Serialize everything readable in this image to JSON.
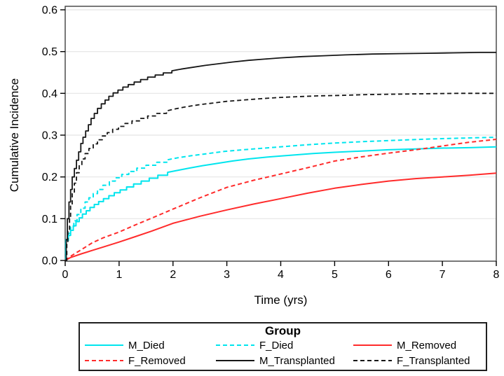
{
  "chart_data": {
    "type": "line",
    "title": "",
    "xlabel": "Time (yrs)",
    "ylabel": "Cumulative Incidence",
    "xlim": [
      0,
      8
    ],
    "ylim": [
      0,
      0.6
    ],
    "xticks": [
      0,
      1,
      2,
      3,
      4,
      5,
      6,
      7,
      8
    ],
    "xtick_labels": [
      "0",
      "1",
      "2",
      "3",
      "4",
      "5",
      "6",
      "7",
      "8"
    ],
    "yticks": [
      0.0,
      0.1,
      0.2,
      0.3,
      0.4,
      0.5,
      0.6
    ],
    "ytick_labels": [
      "0.0",
      "0.1",
      "0.2",
      "0.3",
      "0.4",
      "0.5",
      "0.6"
    ],
    "grid": "horizontal",
    "legend_title": "Group",
    "legend_position": "bottom",
    "colors": {
      "cyan": "#00e5ee",
      "red": "#ff2b2b",
      "black": "#161616",
      "gridline": "#e4e4e4",
      "frame": "#3f3f3f"
    },
    "series": [
      {
        "name": "M_Died",
        "color": "#00e5ee",
        "dash": "none",
        "width": 2,
        "points": [
          [
            0,
            0
          ],
          [
            0.01,
            0
          ],
          [
            0.01,
            0.048
          ],
          [
            0.06,
            0.048
          ],
          [
            0.06,
            0.06
          ],
          [
            0.1,
            0.06
          ],
          [
            0.1,
            0.072
          ],
          [
            0.15,
            0.072
          ],
          [
            0.15,
            0.083
          ],
          [
            0.2,
            0.083
          ],
          [
            0.2,
            0.093
          ],
          [
            0.26,
            0.093
          ],
          [
            0.26,
            0.102
          ],
          [
            0.32,
            0.102
          ],
          [
            0.32,
            0.111
          ],
          [
            0.39,
            0.111
          ],
          [
            0.39,
            0.119
          ],
          [
            0.46,
            0.119
          ],
          [
            0.46,
            0.127
          ],
          [
            0.54,
            0.127
          ],
          [
            0.54,
            0.134
          ],
          [
            0.62,
            0.134
          ],
          [
            0.62,
            0.141
          ],
          [
            0.71,
            0.141
          ],
          [
            0.71,
            0.148
          ],
          [
            0.81,
            0.148
          ],
          [
            0.81,
            0.155
          ],
          [
            0.91,
            0.155
          ],
          [
            0.91,
            0.162
          ],
          [
            1.02,
            0.162
          ],
          [
            1.02,
            0.169
          ],
          [
            1.14,
            0.169
          ],
          [
            1.14,
            0.176
          ],
          [
            1.27,
            0.176
          ],
          [
            1.27,
            0.183
          ],
          [
            1.41,
            0.183
          ],
          [
            1.41,
            0.19
          ],
          [
            1.56,
            0.19
          ],
          [
            1.56,
            0.197
          ],
          [
            1.72,
            0.197
          ],
          [
            1.72,
            0.204
          ],
          [
            1.9,
            0.204
          ],
          [
            1.9,
            0.211
          ],
          [
            2.1,
            0.216
          ],
          [
            2.3,
            0.221
          ],
          [
            2.55,
            0.227
          ],
          [
            2.8,
            0.232
          ],
          [
            3.1,
            0.238
          ],
          [
            3.4,
            0.243
          ],
          [
            3.8,
            0.248
          ],
          [
            4.2,
            0.252
          ],
          [
            4.6,
            0.256
          ],
          [
            5.0,
            0.259
          ],
          [
            5.5,
            0.262
          ],
          [
            6.0,
            0.265
          ],
          [
            6.5,
            0.267
          ],
          [
            7.0,
            0.269
          ],
          [
            7.5,
            0.27
          ],
          [
            8,
            0.272
          ]
        ]
      },
      {
        "name": "F_Died",
        "color": "#00e5ee",
        "dash": "6,4",
        "width": 2,
        "points": [
          [
            0,
            0
          ],
          [
            0.01,
            0
          ],
          [
            0.01,
            0.05
          ],
          [
            0.05,
            0.05
          ],
          [
            0.05,
            0.065
          ],
          [
            0.1,
            0.065
          ],
          [
            0.1,
            0.08
          ],
          [
            0.16,
            0.08
          ],
          [
            0.16,
            0.095
          ],
          [
            0.22,
            0.095
          ],
          [
            0.22,
            0.11
          ],
          [
            0.29,
            0.11
          ],
          [
            0.29,
            0.125
          ],
          [
            0.37,
            0.125
          ],
          [
            0.37,
            0.14
          ],
          [
            0.44,
            0.14
          ],
          [
            0.44,
            0.15
          ],
          [
            0.52,
            0.15
          ],
          [
            0.52,
            0.16
          ],
          [
            0.6,
            0.16
          ],
          [
            0.6,
            0.17
          ],
          [
            0.7,
            0.17
          ],
          [
            0.7,
            0.18
          ],
          [
            0.82,
            0.18
          ],
          [
            0.82,
            0.19
          ],
          [
            0.93,
            0.19
          ],
          [
            0.93,
            0.198
          ],
          [
            1.05,
            0.198
          ],
          [
            1.05,
            0.206
          ],
          [
            1.18,
            0.206
          ],
          [
            1.18,
            0.213
          ],
          [
            1.33,
            0.213
          ],
          [
            1.33,
            0.221
          ],
          [
            1.5,
            0.221
          ],
          [
            1.5,
            0.228
          ],
          [
            1.7,
            0.228
          ],
          [
            1.7,
            0.235
          ],
          [
            1.9,
            0.235
          ],
          [
            1.9,
            0.241
          ],
          [
            2.1,
            0.246
          ],
          [
            2.35,
            0.251
          ],
          [
            2.65,
            0.256
          ],
          [
            2.95,
            0.261
          ],
          [
            3.3,
            0.265
          ],
          [
            3.7,
            0.269
          ],
          [
            4.1,
            0.273
          ],
          [
            4.5,
            0.277
          ],
          [
            5.0,
            0.281
          ],
          [
            5.6,
            0.285
          ],
          [
            6.2,
            0.288
          ],
          [
            6.8,
            0.291
          ],
          [
            7.4,
            0.293
          ],
          [
            8,
            0.295
          ]
        ]
      },
      {
        "name": "M_Removed",
        "color": "#ff2b2b",
        "dash": "none",
        "width": 2,
        "points": [
          [
            0,
            0
          ],
          [
            0.1,
            0.007
          ],
          [
            0.3,
            0.016
          ],
          [
            0.5,
            0.024
          ],
          [
            0.7,
            0.032
          ],
          [
            1.0,
            0.044
          ],
          [
            1.3,
            0.057
          ],
          [
            1.6,
            0.07
          ],
          [
            2.0,
            0.089
          ],
          [
            2.5,
            0.106
          ],
          [
            3.0,
            0.121
          ],
          [
            3.5,
            0.135
          ],
          [
            4.0,
            0.148
          ],
          [
            4.5,
            0.161
          ],
          [
            5.0,
            0.173
          ],
          [
            5.5,
            0.182
          ],
          [
            6.0,
            0.19
          ],
          [
            6.5,
            0.196
          ],
          [
            7.0,
            0.2
          ],
          [
            7.5,
            0.204
          ],
          [
            8,
            0.209
          ]
        ]
      },
      {
        "name": "F_Removed",
        "color": "#ff2b2b",
        "dash": "6,4",
        "width": 2,
        "points": [
          [
            0,
            0
          ],
          [
            0.1,
            0.01
          ],
          [
            0.3,
            0.026
          ],
          [
            0.5,
            0.042
          ],
          [
            0.7,
            0.054
          ],
          [
            1.0,
            0.068
          ],
          [
            1.3,
            0.085
          ],
          [
            1.6,
            0.101
          ],
          [
            2.0,
            0.123
          ],
          [
            2.5,
            0.15
          ],
          [
            3.0,
            0.175
          ],
          [
            3.5,
            0.192
          ],
          [
            4.0,
            0.207
          ],
          [
            4.5,
            0.222
          ],
          [
            5.0,
            0.238
          ],
          [
            5.5,
            0.248
          ],
          [
            6.0,
            0.257
          ],
          [
            6.5,
            0.265
          ],
          [
            7.0,
            0.274
          ],
          [
            7.5,
            0.283
          ],
          [
            8,
            0.29
          ]
        ]
      },
      {
        "name": "M_Transplanted",
        "color": "#161616",
        "dash": "none",
        "width": 1.8,
        "points": [
          [
            0,
            0
          ],
          [
            0.02,
            0
          ],
          [
            0.02,
            0.05
          ],
          [
            0.04,
            0.05
          ],
          [
            0.04,
            0.1
          ],
          [
            0.07,
            0.1
          ],
          [
            0.07,
            0.14
          ],
          [
            0.1,
            0.14
          ],
          [
            0.1,
            0.17
          ],
          [
            0.13,
            0.17
          ],
          [
            0.13,
            0.2
          ],
          [
            0.17,
            0.2
          ],
          [
            0.17,
            0.22
          ],
          [
            0.21,
            0.22
          ],
          [
            0.21,
            0.24
          ],
          [
            0.25,
            0.24
          ],
          [
            0.25,
            0.26
          ],
          [
            0.29,
            0.26
          ],
          [
            0.29,
            0.28
          ],
          [
            0.33,
            0.28
          ],
          [
            0.33,
            0.295
          ],
          [
            0.38,
            0.295
          ],
          [
            0.38,
            0.31
          ],
          [
            0.43,
            0.31
          ],
          [
            0.43,
            0.325
          ],
          [
            0.48,
            0.325
          ],
          [
            0.48,
            0.34
          ],
          [
            0.54,
            0.34
          ],
          [
            0.54,
            0.352
          ],
          [
            0.6,
            0.352
          ],
          [
            0.6,
            0.364
          ],
          [
            0.67,
            0.364
          ],
          [
            0.67,
            0.375
          ],
          [
            0.74,
            0.375
          ],
          [
            0.74,
            0.384
          ],
          [
            0.81,
            0.384
          ],
          [
            0.81,
            0.393
          ],
          [
            0.89,
            0.393
          ],
          [
            0.89,
            0.401
          ],
          [
            0.98,
            0.401
          ],
          [
            0.98,
            0.408
          ],
          [
            1.07,
            0.408
          ],
          [
            1.07,
            0.415
          ],
          [
            1.17,
            0.415
          ],
          [
            1.17,
            0.421
          ],
          [
            1.28,
            0.421
          ],
          [
            1.28,
            0.427
          ],
          [
            1.4,
            0.427
          ],
          [
            1.4,
            0.433
          ],
          [
            1.53,
            0.433
          ],
          [
            1.53,
            0.439
          ],
          [
            1.67,
            0.439
          ],
          [
            1.67,
            0.444
          ],
          [
            1.82,
            0.444
          ],
          [
            1.82,
            0.449
          ],
          [
            1.98,
            0.449
          ],
          [
            1.98,
            0.454
          ],
          [
            2.15,
            0.458
          ],
          [
            2.35,
            0.462
          ],
          [
            2.6,
            0.467
          ],
          [
            2.85,
            0.471
          ],
          [
            3.1,
            0.475
          ],
          [
            3.4,
            0.479
          ],
          [
            3.7,
            0.482
          ],
          [
            4.0,
            0.485
          ],
          [
            4.4,
            0.488
          ],
          [
            4.8,
            0.49
          ],
          [
            5.2,
            0.492
          ],
          [
            5.7,
            0.494
          ],
          [
            6.2,
            0.495
          ],
          [
            6.7,
            0.496
          ],
          [
            7.2,
            0.497
          ],
          [
            7.7,
            0.498
          ],
          [
            8,
            0.498
          ]
        ]
      },
      {
        "name": "F_Transplanted",
        "color": "#161616",
        "dash": "6,4",
        "width": 1.8,
        "points": [
          [
            0,
            0
          ],
          [
            0.03,
            0
          ],
          [
            0.03,
            0.04
          ],
          [
            0.05,
            0.04
          ],
          [
            0.05,
            0.07
          ],
          [
            0.08,
            0.07
          ],
          [
            0.08,
            0.1
          ],
          [
            0.1,
            0.1
          ],
          [
            0.1,
            0.13
          ],
          [
            0.13,
            0.13
          ],
          [
            0.13,
            0.16
          ],
          [
            0.17,
            0.16
          ],
          [
            0.17,
            0.185
          ],
          [
            0.21,
            0.185
          ],
          [
            0.21,
            0.21
          ],
          [
            0.26,
            0.21
          ],
          [
            0.26,
            0.228
          ],
          [
            0.31,
            0.228
          ],
          [
            0.31,
            0.243
          ],
          [
            0.37,
            0.243
          ],
          [
            0.37,
            0.256
          ],
          [
            0.44,
            0.256
          ],
          [
            0.44,
            0.268
          ],
          [
            0.52,
            0.268
          ],
          [
            0.52,
            0.279
          ],
          [
            0.6,
            0.279
          ],
          [
            0.6,
            0.289
          ],
          [
            0.69,
            0.289
          ],
          [
            0.69,
            0.298
          ],
          [
            0.78,
            0.298
          ],
          [
            0.78,
            0.306
          ],
          [
            0.88,
            0.306
          ],
          [
            0.88,
            0.314
          ],
          [
            0.99,
            0.314
          ],
          [
            0.99,
            0.321
          ],
          [
            1.11,
            0.321
          ],
          [
            1.11,
            0.328
          ],
          [
            1.24,
            0.328
          ],
          [
            1.24,
            0.334
          ],
          [
            1.38,
            0.334
          ],
          [
            1.38,
            0.34
          ],
          [
            1.53,
            0.34
          ],
          [
            1.53,
            0.346
          ],
          [
            1.7,
            0.346
          ],
          [
            1.7,
            0.352
          ],
          [
            1.88,
            0.352
          ],
          [
            1.88,
            0.358
          ],
          [
            2.05,
            0.363
          ],
          [
            2.25,
            0.368
          ],
          [
            2.5,
            0.373
          ],
          [
            2.75,
            0.377
          ],
          [
            3.0,
            0.381
          ],
          [
            3.3,
            0.384
          ],
          [
            3.6,
            0.387
          ],
          [
            3.95,
            0.39
          ],
          [
            4.3,
            0.392
          ],
          [
            4.7,
            0.394
          ],
          [
            5.1,
            0.395
          ],
          [
            5.6,
            0.397
          ],
          [
            6.1,
            0.398
          ],
          [
            6.7,
            0.399
          ],
          [
            7.3,
            0.4
          ],
          [
            8,
            0.4
          ]
        ]
      }
    ]
  }
}
